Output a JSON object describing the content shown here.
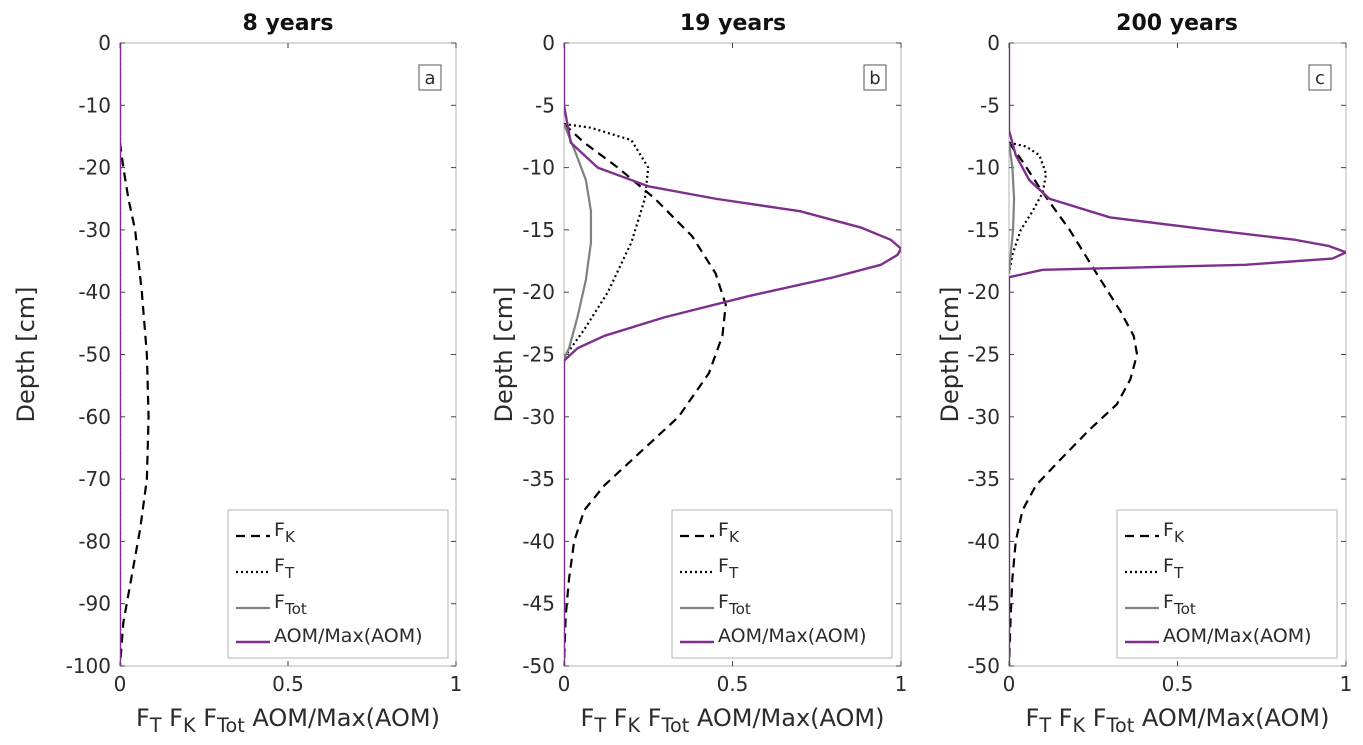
{
  "chart_data": [
    {
      "type": "line",
      "title": "8 years",
      "panel_label": "a",
      "ylabel": "Depth [cm]",
      "xlabel_parts": [
        "F",
        "T",
        " F",
        "K",
        " F",
        "Tot",
        " AOM/Max(AOM)"
      ],
      "xlim": [
        0,
        1
      ],
      "ylim": [
        -100,
        0
      ],
      "xticks": [
        {
          "value": 0,
          "label": "0"
        },
        {
          "value": 0.5,
          "label": "0.5"
        },
        {
          "value": 1,
          "label": "1"
        }
      ],
      "yticks": [
        {
          "value": 0,
          "label": "0"
        },
        {
          "value": -10,
          "label": "-10"
        },
        {
          "value": -20,
          "label": "-20"
        },
        {
          "value": -30,
          "label": "-30"
        },
        {
          "value": -40,
          "label": "-40"
        },
        {
          "value": -50,
          "label": "-50"
        },
        {
          "value": -60,
          "label": "-60"
        },
        {
          "value": -70,
          "label": "-70"
        },
        {
          "value": -80,
          "label": "-80"
        },
        {
          "value": -90,
          "label": "-90"
        },
        {
          "value": -100,
          "label": "-100"
        }
      ],
      "grid": false,
      "legend_position": "bottom-right",
      "series": [
        {
          "key": "FK",
          "name_main": "F",
          "name_sub": "K",
          "color": "#000000",
          "dash": "9,6",
          "points": [
            [
              0,
              -16
            ],
            [
              0.01,
              -20
            ],
            [
              0.025,
              -25
            ],
            [
              0.045,
              -30
            ],
            [
              0.065,
              -40
            ],
            [
              0.08,
              -50
            ],
            [
              0.085,
              -60
            ],
            [
              0.08,
              -70
            ],
            [
              0.06,
              -78
            ],
            [
              0.03,
              -87
            ],
            [
              0.01,
              -93
            ],
            [
              0,
              -100
            ]
          ]
        },
        {
          "key": "FT",
          "name_main": "F",
          "name_sub": "T",
          "color": "#000000",
          "dash": "2,3",
          "points": [
            [
              0,
              0
            ],
            [
              0,
              -100
            ]
          ]
        },
        {
          "key": "FTot",
          "name_main": "F",
          "name_sub": "Tot",
          "color": "#808080",
          "dash": "",
          "points": [
            [
              0,
              0
            ],
            [
              0,
              -16
            ]
          ]
        },
        {
          "key": "AOM",
          "name_main": "AOM/Max(AOM)",
          "name_sub": "",
          "color": "#7e2f8e",
          "dash": "",
          "points": [
            [
              0,
              0
            ],
            [
              0,
              -100
            ]
          ]
        }
      ]
    },
    {
      "type": "line",
      "title": "19 years",
      "panel_label": "b",
      "ylabel": "Depth [cm]",
      "xlabel_parts": [
        "F",
        "T",
        " F",
        "K",
        " F",
        "Tot",
        " AOM/Max(AOM)"
      ],
      "xlim": [
        0,
        1
      ],
      "ylim": [
        -50,
        0
      ],
      "xticks": [
        {
          "value": 0,
          "label": "0"
        },
        {
          "value": 0.5,
          "label": "0.5"
        },
        {
          "value": 1,
          "label": "1"
        }
      ],
      "yticks": [
        {
          "value": 0,
          "label": "0"
        },
        {
          "value": -5,
          "label": "-5"
        },
        {
          "value": -10,
          "label": "-10"
        },
        {
          "value": -15,
          "label": "-15"
        },
        {
          "value": -20,
          "label": "-20"
        },
        {
          "value": -25,
          "label": "-25"
        },
        {
          "value": -30,
          "label": "-30"
        },
        {
          "value": -35,
          "label": "-35"
        },
        {
          "value": -40,
          "label": "-40"
        },
        {
          "value": -45,
          "label": "-45"
        },
        {
          "value": -50,
          "label": "-50"
        }
      ],
      "grid": false,
      "legend_position": "bottom-right",
      "series": [
        {
          "key": "FK",
          "name_main": "F",
          "name_sub": "K",
          "color": "#000000",
          "dash": "9,6",
          "points": [
            [
              0,
              -6.5
            ],
            [
              0.06,
              -8
            ],
            [
              0.16,
              -10
            ],
            [
              0.27,
              -12.5
            ],
            [
              0.38,
              -15.5
            ],
            [
              0.45,
              -18.5
            ],
            [
              0.48,
              -21
            ],
            [
              0.47,
              -23.5
            ],
            [
              0.43,
              -26.5
            ],
            [
              0.34,
              -30
            ],
            [
              0.22,
              -33
            ],
            [
              0.12,
              -35.5
            ],
            [
              0.06,
              -37.5
            ],
            [
              0.03,
              -40
            ],
            [
              0.015,
              -43
            ],
            [
              0.005,
              -46
            ],
            [
              0,
              -50
            ]
          ]
        },
        {
          "key": "FT",
          "name_main": "F",
          "name_sub": "T",
          "color": "#000000",
          "dash": "2,3",
          "points": [
            [
              0,
              -6.5
            ],
            [
              0.08,
              -6.8
            ],
            [
              0.2,
              -7.8
            ],
            [
              0.25,
              -10
            ],
            [
              0.24,
              -12.5
            ],
            [
              0.2,
              -16
            ],
            [
              0.13,
              -20
            ],
            [
              0.06,
              -23
            ],
            [
              0.02,
              -24.5
            ],
            [
              0,
              -25.3
            ]
          ]
        },
        {
          "key": "FTot",
          "name_main": "F",
          "name_sub": "Tot",
          "color": "#808080",
          "dash": "",
          "points": [
            [
              0,
              -6.5
            ],
            [
              0.03,
              -8.5
            ],
            [
              0.065,
              -11
            ],
            [
              0.08,
              -13.5
            ],
            [
              0.08,
              -16
            ],
            [
              0.065,
              -19
            ],
            [
              0.04,
              -22
            ],
            [
              0.015,
              -24.5
            ],
            [
              0,
              -25.3
            ]
          ]
        },
        {
          "key": "AOM",
          "name_main": "AOM/Max(AOM)",
          "name_sub": "",
          "color": "#7e2f8e",
          "dash": "",
          "points": [
            [
              0,
              0
            ],
            [
              0,
              -5
            ],
            [
              0.02,
              -8
            ],
            [
              0.1,
              -10
            ],
            [
              0.25,
              -11.5
            ],
            [
              0.45,
              -12.5
            ],
            [
              0.7,
              -13.5
            ],
            [
              0.88,
              -14.8
            ],
            [
              0.97,
              -15.8
            ],
            [
              1,
              -16.5
            ],
            [
              0.99,
              -17
            ],
            [
              0.94,
              -17.8
            ],
            [
              0.8,
              -18.8
            ],
            [
              0.55,
              -20.3
            ],
            [
              0.3,
              -22
            ],
            [
              0.12,
              -23.5
            ],
            [
              0.04,
              -24.5
            ],
            [
              0,
              -25.5
            ],
            [
              0,
              -50
            ]
          ]
        }
      ]
    },
    {
      "type": "line",
      "title": "200 years",
      "panel_label": "c",
      "ylabel": "Depth [cm]",
      "xlabel_parts": [
        "F",
        "T",
        " F",
        "K",
        " F",
        "Tot",
        " AOM/Max(AOM)"
      ],
      "xlim": [
        0,
        1
      ],
      "ylim": [
        -50,
        0
      ],
      "xticks": [
        {
          "value": 0,
          "label": "0"
        },
        {
          "value": 0.5,
          "label": "0.5"
        },
        {
          "value": 1,
          "label": "1"
        }
      ],
      "yticks": [
        {
          "value": 0,
          "label": "0"
        },
        {
          "value": -5,
          "label": "-5"
        },
        {
          "value": -10,
          "label": "-10"
        },
        {
          "value": -15,
          "label": "-15"
        },
        {
          "value": -20,
          "label": "-20"
        },
        {
          "value": -25,
          "label": "-25"
        },
        {
          "value": -30,
          "label": "-30"
        },
        {
          "value": -35,
          "label": "-35"
        },
        {
          "value": -40,
          "label": "-40"
        },
        {
          "value": -45,
          "label": "-45"
        },
        {
          "value": -50,
          "label": "-50"
        }
      ],
      "grid": false,
      "legend_position": "bottom-right",
      "series": [
        {
          "key": "FK",
          "name_main": "F",
          "name_sub": "K",
          "color": "#000000",
          "dash": "9,6",
          "points": [
            [
              0,
              -8
            ],
            [
              0.04,
              -9.5
            ],
            [
              0.1,
              -12
            ],
            [
              0.18,
              -15
            ],
            [
              0.26,
              -18.5
            ],
            [
              0.33,
              -21.5
            ],
            [
              0.37,
              -23.5
            ],
            [
              0.38,
              -25
            ],
            [
              0.36,
              -27
            ],
            [
              0.32,
              -29
            ],
            [
              0.24,
              -31
            ],
            [
              0.15,
              -33.5
            ],
            [
              0.08,
              -35.5
            ],
            [
              0.04,
              -37.5
            ],
            [
              0.02,
              -40
            ],
            [
              0.01,
              -43
            ],
            [
              0.005,
              -46
            ],
            [
              0,
              -50
            ]
          ]
        },
        {
          "key": "FT",
          "name_main": "F",
          "name_sub": "T",
          "color": "#000000",
          "dash": "2,3",
          "points": [
            [
              0,
              -8
            ],
            [
              0.05,
              -8.3
            ],
            [
              0.09,
              -9
            ],
            [
              0.11,
              -10.5
            ],
            [
              0.1,
              -12
            ],
            [
              0.07,
              -13.5
            ],
            [
              0.035,
              -15
            ],
            [
              0.01,
              -17
            ],
            [
              0,
              -18.5
            ]
          ]
        },
        {
          "key": "FTot",
          "name_main": "F",
          "name_sub": "Tot",
          "color": "#808080",
          "dash": "",
          "points": [
            [
              0,
              -8
            ],
            [
              0.01,
              -10
            ],
            [
              0.015,
              -12.5
            ],
            [
              0.012,
              -15
            ],
            [
              0.005,
              -17
            ],
            [
              0,
              -18.5
            ]
          ]
        },
        {
          "key": "AOM",
          "name_main": "AOM/Max(AOM)",
          "name_sub": "",
          "color": "#7e2f8e",
          "dash": "",
          "points": [
            [
              0,
              0
            ],
            [
              0,
              -7
            ],
            [
              0.02,
              -9
            ],
            [
              0.06,
              -11
            ],
            [
              0.12,
              -12.5
            ],
            [
              0.3,
              -14
            ],
            [
              0.6,
              -15
            ],
            [
              0.85,
              -15.8
            ],
            [
              0.95,
              -16.3
            ],
            [
              1,
              -16.8
            ],
            [
              0.96,
              -17.3
            ],
            [
              0.7,
              -17.8
            ],
            [
              0.1,
              -18.2
            ],
            [
              0,
              -18.8
            ],
            [
              0,
              -50
            ]
          ]
        }
      ]
    }
  ]
}
